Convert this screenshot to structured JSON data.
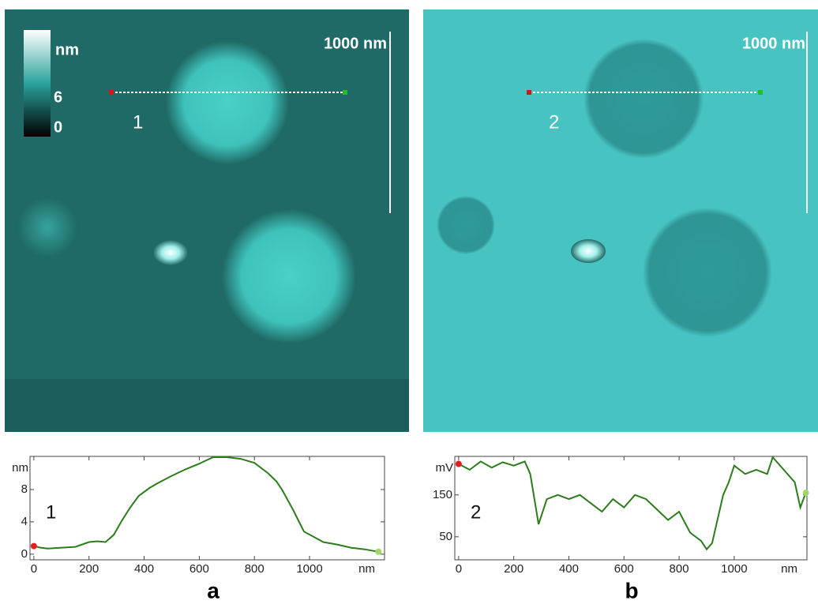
{
  "images": [
    {
      "colorbar_unit": "nm",
      "colorbar_ticks": [
        "6",
        "0"
      ],
      "scale_bar": "1000 nm",
      "line_label": "1"
    },
    {
      "scale_bar": "1000 nm",
      "line_label": "2"
    }
  ],
  "chart_data": [
    {
      "type": "line",
      "panel": "a",
      "annotation": "1",
      "y_unit": "nm",
      "x_unit": "nm",
      "xlim": [
        -14,
        1272
      ],
      "ylim": [
        -0.7,
        12.1
      ],
      "xticks": [
        0,
        200,
        400,
        600,
        800,
        1000
      ],
      "yticks": [
        0,
        4,
        8
      ],
      "series": [
        {
          "color": "#2b7d1b",
          "x": [
            0,
            25,
            50,
            100,
            150,
            200,
            230,
            260,
            290,
            320,
            350,
            380,
            420,
            450,
            500,
            550,
            600,
            650,
            700,
            750,
            800,
            850,
            880,
            900,
            940,
            980,
            1050,
            1100,
            1150,
            1200,
            1250
          ],
          "values": [
            1,
            0.8,
            0.7,
            0.8,
            0.9,
            1.5,
            1.6,
            1.5,
            2.4,
            4.2,
            5.8,
            7.2,
            8.2,
            8.8,
            9.7,
            10.5,
            11.2,
            12,
            12,
            11.8,
            11.3,
            10,
            9,
            8,
            5.5,
            2.8,
            1.5,
            1.2,
            0.8,
            0.6,
            0.3
          ]
        }
      ]
    },
    {
      "type": "line",
      "panel": "b",
      "annotation": "2",
      "y_unit": "mV",
      "x_unit": "nm",
      "xlim": [
        -14,
        1264
      ],
      "ylim": [
        -5,
        242
      ],
      "xticks": [
        0,
        200,
        400,
        600,
        800,
        1000
      ],
      "yticks": [
        50,
        150
      ],
      "series": [
        {
          "color": "#2b7d1b",
          "x": [
            0,
            40,
            80,
            120,
            160,
            200,
            240,
            260,
            280,
            290,
            320,
            360,
            400,
            440,
            480,
            520,
            560,
            600,
            640,
            680,
            720,
            760,
            800,
            840,
            880,
            900,
            920,
            960,
            980,
            1000,
            1040,
            1080,
            1120,
            1140,
            1180,
            1220,
            1240,
            1260
          ],
          "values": [
            224,
            210,
            230,
            215,
            228,
            220,
            230,
            200,
            120,
            80,
            140,
            150,
            140,
            150,
            130,
            110,
            140,
            120,
            150,
            140,
            115,
            90,
            110,
            60,
            40,
            20,
            35,
            150,
            180,
            220,
            200,
            210,
            200,
            240,
            210,
            180,
            120,
            155
          ]
        }
      ]
    }
  ]
}
